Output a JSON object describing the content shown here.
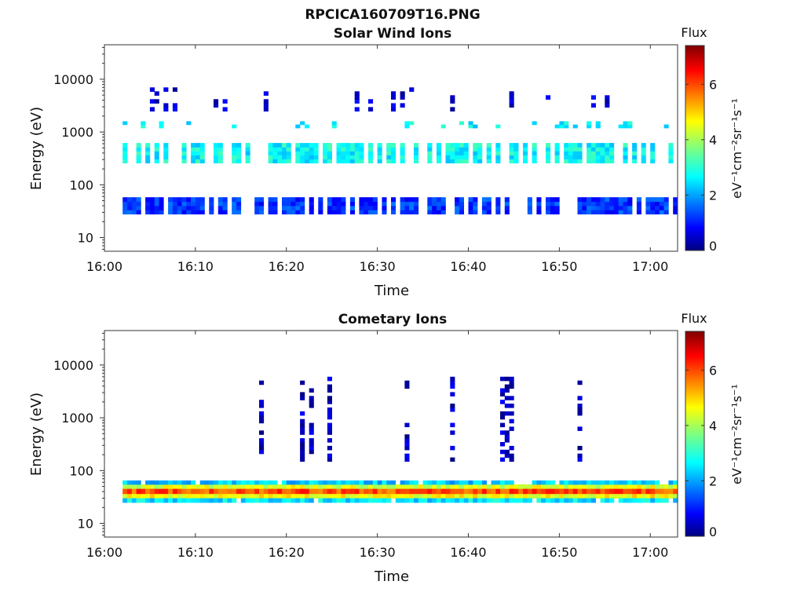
{
  "figure_title": "RPCICA160709T16.PNG",
  "chart_data": [
    {
      "type": "heatmap",
      "title": "Solar Wind Ions",
      "xlabel": "Time",
      "ylabel": "Energy (eV)",
      "x_ticks": [
        "16:00",
        "16:10",
        "16:20",
        "16:30",
        "16:40",
        "16:50",
        "17:00"
      ],
      "xlim": [
        "16:00",
        "17:03"
      ],
      "y_ticks": [
        "10",
        "100",
        "1000",
        "10000"
      ],
      "y_scale": "log",
      "ylim": [
        5.5,
        45000
      ],
      "colorbar": {
        "label": "Flux",
        "unit": "eV⁻¹cm⁻²sr⁻¹s⁻¹",
        "ticks": [
          "0",
          "2",
          "4",
          "6"
        ],
        "range": [
          0,
          7.4
        ],
        "colormap": "jet"
      },
      "clusters": [
        {
          "energy_min": 260,
          "energy_max": 620,
          "flux": 2.8,
          "coverage": 0.55,
          "label": "main solar wind band"
        },
        {
          "energy_min": 1200,
          "energy_max": 1600,
          "flux": 2.7,
          "coverage": 0.35,
          "label": "alpha band"
        },
        {
          "energy_min": 28,
          "energy_max": 58,
          "flux": 1.3,
          "coverage": 0.7,
          "label": "low-energy band"
        },
        {
          "energy_min": 2500,
          "energy_max": 7000,
          "flux": 0.6,
          "coverage": 0.15,
          "label": "sparse high-energy"
        }
      ]
    },
    {
      "type": "heatmap",
      "title": "Cometary Ions",
      "xlabel": "Time",
      "ylabel": "Energy (eV)",
      "x_ticks": [
        "16:00",
        "16:10",
        "16:20",
        "16:30",
        "16:40",
        "16:50",
        "17:00"
      ],
      "xlim": [
        "16:00",
        "17:03"
      ],
      "y_ticks": [
        "10",
        "100",
        "1000",
        "10000"
      ],
      "y_scale": "log",
      "ylim": [
        5.5,
        45000
      ],
      "colorbar": {
        "label": "Flux",
        "unit": "eV⁻¹cm⁻²sr⁻¹s⁻¹",
        "ticks": [
          "0",
          "2",
          "4",
          "6"
        ],
        "range": [
          0,
          7.4
        ],
        "colormap": "jet"
      },
      "clusters": [
        {
          "energy_min": 36,
          "energy_max": 46,
          "flux": 5.9,
          "coverage": 1.0,
          "label": "peak band"
        },
        {
          "energy_min": 30,
          "energy_max": 36,
          "flux": 4.6,
          "coverage": 1.0,
          "label": "lower core"
        },
        {
          "energy_min": 46,
          "energy_max": 55,
          "flux": 4.4,
          "coverage": 1.0,
          "label": "upper core"
        },
        {
          "energy_min": 25,
          "energy_max": 30,
          "flux": 2.6,
          "coverage": 0.9,
          "label": "lower edge"
        },
        {
          "energy_min": 55,
          "energy_max": 65,
          "flux": 2.4,
          "coverage": 0.8,
          "label": "upper edge"
        },
        {
          "energy_min": 150,
          "energy_max": 6000,
          "flux": 0.5,
          "coverage": 0.08,
          "label": "sparse high-energy"
        }
      ]
    }
  ]
}
